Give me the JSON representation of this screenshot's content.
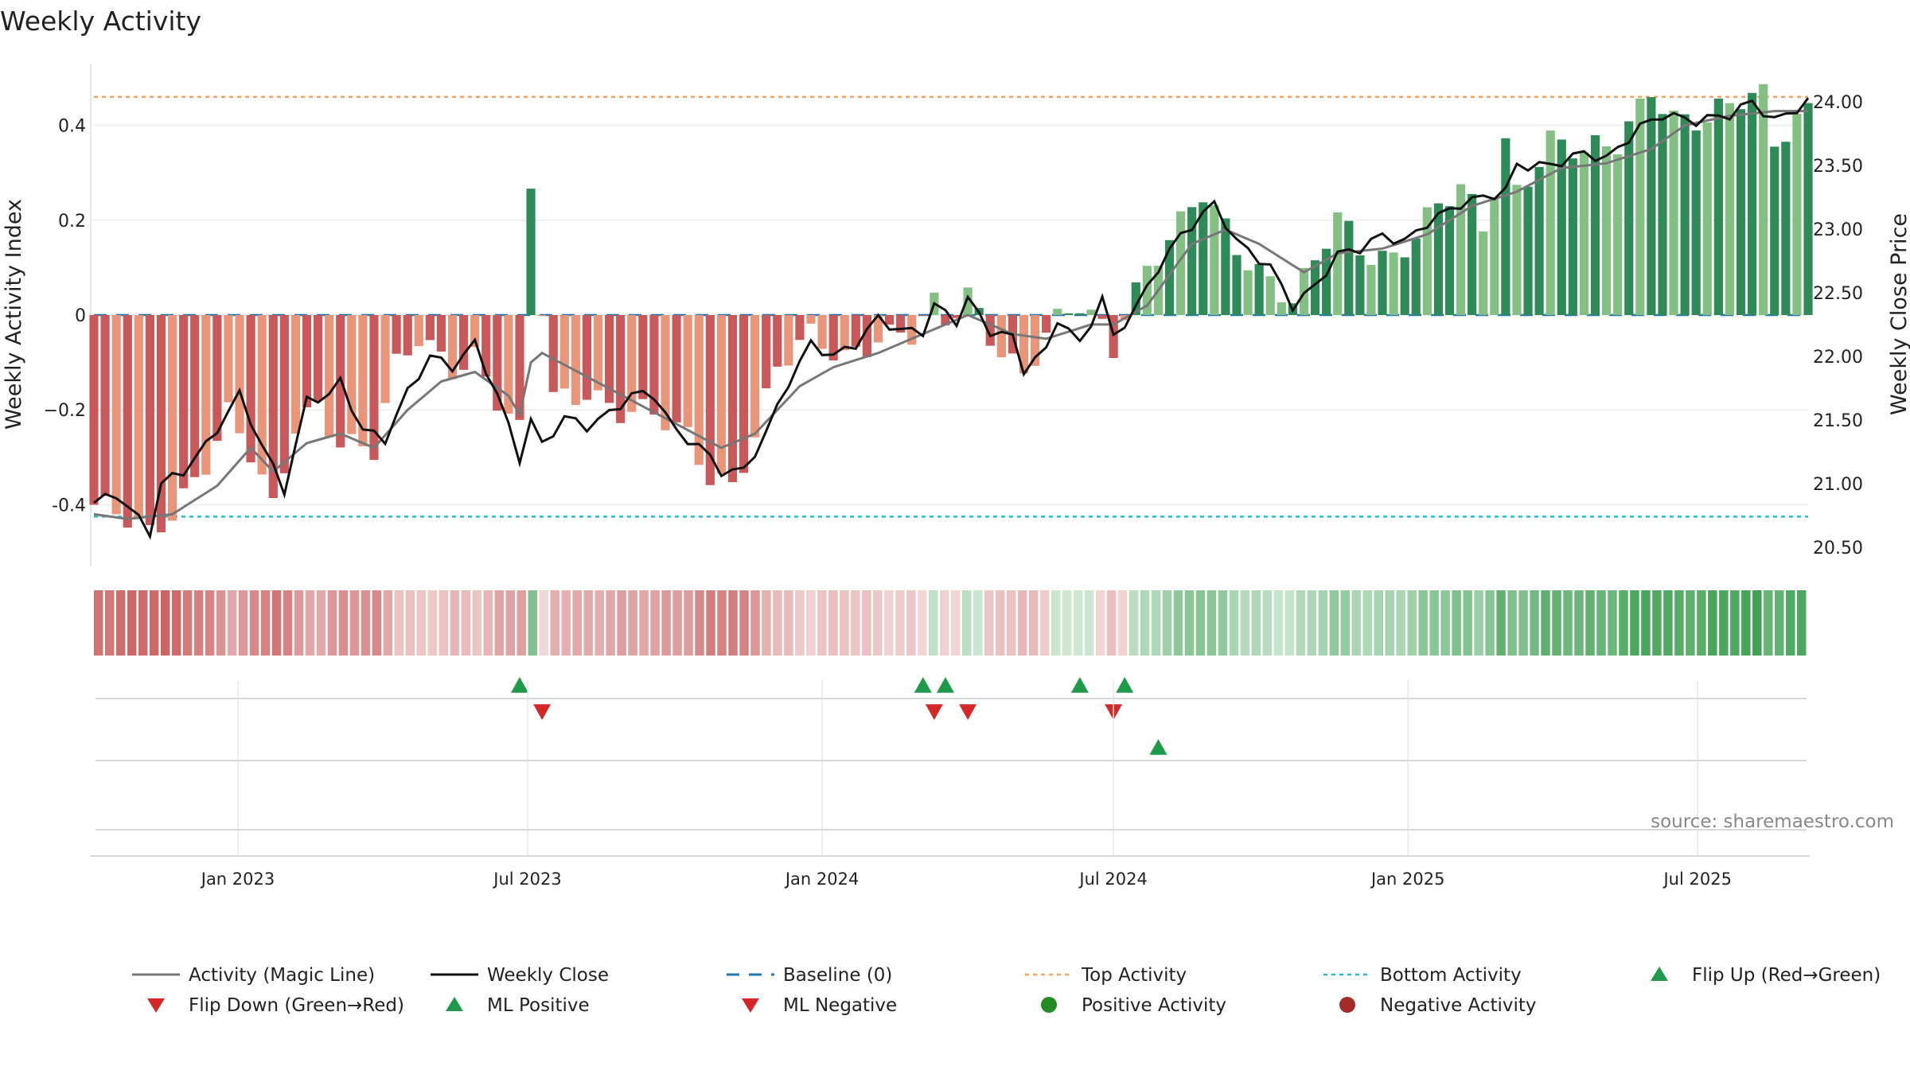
{
  "chart_data": {
    "type": "bar",
    "title": "Weekly Activity",
    "ylabel": "Weekly Activity Index",
    "y2label": "Weekly Close Price",
    "ylim": [
      -0.53,
      0.53
    ],
    "y2lim": [
      20.35,
      24.3
    ],
    "yticks": [
      {
        "v": 0.4,
        "t": "0.4"
      },
      {
        "v": 0.2,
        "t": "0.2"
      },
      {
        "v": 0,
        "t": "0"
      },
      {
        "v": -0.2,
        "t": "−0.2"
      },
      {
        "v": -0.4,
        "t": "-0.4"
      }
    ],
    "y2ticks": [
      "24.00",
      "23.50",
      "23.00",
      "22.50",
      "22.00",
      "21.50",
      "21.00",
      "20.50"
    ],
    "grid": true,
    "x_start": "2022-10-03",
    "x_end": "2025-09-08",
    "week_step_days": 7,
    "x_ticks": [
      {
        "date": "2023-01-01",
        "label": "Jan 2023"
      },
      {
        "date": "2023-07-01",
        "label": "Jul 2023"
      },
      {
        "date": "2024-01-01",
        "label": "Jan 2024"
      },
      {
        "date": "2024-07-01",
        "label": "Jul 2024"
      },
      {
        "date": "2025-01-01",
        "label": "Jan 2025"
      },
      {
        "date": "2025-07-01",
        "label": "Jul 2025"
      }
    ],
    "top_activity": 0.46,
    "bottom_activity": -0.425,
    "activity_knots": [
      {
        "date": "2022-10-03",
        "v": -0.4
      },
      {
        "date": "2022-10-24",
        "v": -0.44
      },
      {
        "date": "2022-11-07",
        "v": -0.47
      },
      {
        "date": "2022-11-21",
        "v": -0.41
      },
      {
        "date": "2022-12-12",
        "v": -0.3
      },
      {
        "date": "2022-12-26",
        "v": -0.21
      },
      {
        "date": "2023-01-09",
        "v": -0.3
      },
      {
        "date": "2023-01-23",
        "v": -0.42
      },
      {
        "date": "2023-02-06",
        "v": -0.23
      },
      {
        "date": "2023-02-20",
        "v": -0.18
      },
      {
        "date": "2023-03-06",
        "v": -0.26
      },
      {
        "date": "2023-03-27",
        "v": -0.29
      },
      {
        "date": "2023-04-10",
        "v": -0.12
      },
      {
        "date": "2023-04-24",
        "v": -0.05
      },
      {
        "date": "2023-05-15",
        "v": -0.1
      },
      {
        "date": "2023-05-29",
        "v": -0.08
      },
      {
        "date": "2023-06-12",
        "v": -0.18
      },
      {
        "date": "2023-06-26",
        "v": -0.26
      },
      {
        "date": "2023-07-03",
        "v": 0.26
      },
      {
        "date": "2023-07-10",
        "v": 0.01
      },
      {
        "date": "2023-07-17",
        "v": -0.18
      },
      {
        "date": "2023-08-07",
        "v": -0.15
      },
      {
        "date": "2023-08-28",
        "v": -0.2
      },
      {
        "date": "2023-09-18",
        "v": -0.22
      },
      {
        "date": "2023-10-09",
        "v": -0.26
      },
      {
        "date": "2023-10-23",
        "v": -0.33
      },
      {
        "date": "2023-11-06",
        "v": -0.35
      },
      {
        "date": "2023-11-20",
        "v": -0.25
      },
      {
        "date": "2023-12-04",
        "v": -0.12
      },
      {
        "date": "2023-12-25",
        "v": -0.05
      },
      {
        "date": "2024-01-15",
        "v": -0.08
      },
      {
        "date": "2024-02-05",
        "v": -0.04
      },
      {
        "date": "2024-02-26",
        "v": -0.05
      },
      {
        "date": "2024-03-11",
        "v": 0.01
      },
      {
        "date": "2024-03-18",
        "v": -0.02
      },
      {
        "date": "2024-04-01",
        "v": 0.05
      },
      {
        "date": "2024-04-15",
        "v": -0.03
      },
      {
        "date": "2024-05-06",
        "v": -0.13
      },
      {
        "date": "2024-05-20",
        "v": -0.05
      },
      {
        "date": "2024-06-10",
        "v": 0.02
      },
      {
        "date": "2024-06-24",
        "v": -0.02
      },
      {
        "date": "2024-07-01",
        "v": -0.06
      },
      {
        "date": "2024-07-08",
        "v": 0.02
      },
      {
        "date": "2024-07-22",
        "v": 0.1
      },
      {
        "date": "2024-08-12",
        "v": 0.18
      },
      {
        "date": "2024-08-26",
        "v": 0.25
      },
      {
        "date": "2024-09-16",
        "v": 0.15
      },
      {
        "date": "2024-10-07",
        "v": 0.08
      },
      {
        "date": "2024-10-21",
        "v": 0.03
      },
      {
        "date": "2024-11-04",
        "v": 0.1
      },
      {
        "date": "2024-11-18",
        "v": 0.2
      },
      {
        "date": "2024-12-02",
        "v": 0.14
      },
      {
        "date": "2024-12-23",
        "v": 0.13
      },
      {
        "date": "2025-01-13",
        "v": 0.2
      },
      {
        "date": "2025-02-03",
        "v": 0.26
      },
      {
        "date": "2025-02-17",
        "v": 0.18
      },
      {
        "date": "2025-03-03",
        "v": 0.37
      },
      {
        "date": "2025-03-10",
        "v": 0.27
      },
      {
        "date": "2025-03-31",
        "v": 0.37
      },
      {
        "date": "2025-04-21",
        "v": 0.33
      },
      {
        "date": "2025-05-12",
        "v": 0.36
      },
      {
        "date": "2025-06-02",
        "v": 0.49
      },
      {
        "date": "2025-06-16",
        "v": 0.42
      },
      {
        "date": "2025-07-07",
        "v": 0.4
      },
      {
        "date": "2025-07-28",
        "v": 0.45
      },
      {
        "date": "2025-08-11",
        "v": 0.47
      },
      {
        "date": "2025-08-18",
        "v": 0.38
      },
      {
        "date": "2025-09-08",
        "v": 0.44
      }
    ],
    "close_knots": [
      {
        "date": "2022-10-03",
        "v": 20.85
      },
      {
        "date": "2022-10-17",
        "v": 20.92
      },
      {
        "date": "2022-11-07",
        "v": 20.62
      },
      {
        "date": "2022-11-14",
        "v": 21.0
      },
      {
        "date": "2022-11-28",
        "v": 21.1
      },
      {
        "date": "2022-12-12",
        "v": 21.3
      },
      {
        "date": "2023-01-02",
        "v": 21.7
      },
      {
        "date": "2023-01-16",
        "v": 21.3
      },
      {
        "date": "2023-01-30",
        "v": 20.95
      },
      {
        "date": "2023-02-13",
        "v": 21.65
      },
      {
        "date": "2023-02-27",
        "v": 21.7
      },
      {
        "date": "2023-03-06",
        "v": 21.8
      },
      {
        "date": "2023-03-20",
        "v": 21.42
      },
      {
        "date": "2023-04-03",
        "v": 21.35
      },
      {
        "date": "2023-04-17",
        "v": 21.72
      },
      {
        "date": "2023-05-01",
        "v": 22.0
      },
      {
        "date": "2023-05-15",
        "v": 21.92
      },
      {
        "date": "2023-05-29",
        "v": 22.1
      },
      {
        "date": "2023-06-12",
        "v": 21.7
      },
      {
        "date": "2023-06-26",
        "v": 21.2
      },
      {
        "date": "2023-07-03",
        "v": 21.5
      },
      {
        "date": "2023-07-10",
        "v": 21.3
      },
      {
        "date": "2023-07-24",
        "v": 21.52
      },
      {
        "date": "2023-08-07",
        "v": 21.45
      },
      {
        "date": "2023-08-21",
        "v": 21.55
      },
      {
        "date": "2023-09-04",
        "v": 21.7
      },
      {
        "date": "2023-09-18",
        "v": 21.7
      },
      {
        "date": "2023-10-02",
        "v": 21.4
      },
      {
        "date": "2023-10-16",
        "v": 21.3
      },
      {
        "date": "2023-10-30",
        "v": 21.1
      },
      {
        "date": "2023-11-13",
        "v": 21.1
      },
      {
        "date": "2023-11-27",
        "v": 21.4
      },
      {
        "date": "2023-12-11",
        "v": 21.8
      },
      {
        "date": "2023-12-25",
        "v": 22.1
      },
      {
        "date": "2024-01-08",
        "v": 22.0
      },
      {
        "date": "2024-01-22",
        "v": 22.1
      },
      {
        "date": "2024-02-05",
        "v": 22.3
      },
      {
        "date": "2024-02-19",
        "v": 22.2
      },
      {
        "date": "2024-03-04",
        "v": 22.2
      },
      {
        "date": "2024-03-11",
        "v": 22.4
      },
      {
        "date": "2024-03-25",
        "v": 22.28
      },
      {
        "date": "2024-04-01",
        "v": 22.45
      },
      {
        "date": "2024-04-15",
        "v": 22.2
      },
      {
        "date": "2024-04-29",
        "v": 22.15
      },
      {
        "date": "2024-05-06",
        "v": 21.9
      },
      {
        "date": "2024-05-20",
        "v": 22.05
      },
      {
        "date": "2024-05-27",
        "v": 22.3
      },
      {
        "date": "2024-06-10",
        "v": 22.1
      },
      {
        "date": "2024-06-24",
        "v": 22.45
      },
      {
        "date": "2024-07-01",
        "v": 22.15
      },
      {
        "date": "2024-07-15",
        "v": 22.38
      },
      {
        "date": "2024-07-29",
        "v": 22.7
      },
      {
        "date": "2024-08-12",
        "v": 22.95
      },
      {
        "date": "2024-09-02",
        "v": 23.2
      },
      {
        "date": "2024-09-16",
        "v": 22.9
      },
      {
        "date": "2024-10-07",
        "v": 22.7
      },
      {
        "date": "2024-10-21",
        "v": 22.4
      },
      {
        "date": "2024-11-04",
        "v": 22.55
      },
      {
        "date": "2024-11-18",
        "v": 22.8
      },
      {
        "date": "2024-12-02",
        "v": 22.85
      },
      {
        "date": "2024-12-16",
        "v": 22.95
      },
      {
        "date": "2024-12-30",
        "v": 22.9
      },
      {
        "date": "2025-01-13",
        "v": 23.05
      },
      {
        "date": "2025-02-03",
        "v": 23.2
      },
      {
        "date": "2025-02-17",
        "v": 23.25
      },
      {
        "date": "2025-03-03",
        "v": 23.3
      },
      {
        "date": "2025-03-10",
        "v": 23.5
      },
      {
        "date": "2025-03-31",
        "v": 23.5
      },
      {
        "date": "2025-04-21",
        "v": 23.6
      },
      {
        "date": "2025-05-05",
        "v": 23.55
      },
      {
        "date": "2025-05-26",
        "v": 23.8
      },
      {
        "date": "2025-06-09",
        "v": 23.9
      },
      {
        "date": "2025-06-30",
        "v": 23.85
      },
      {
        "date": "2025-07-21",
        "v": 23.9
      },
      {
        "date": "2025-08-04",
        "v": 24.0
      },
      {
        "date": "2025-08-18",
        "v": 23.85
      },
      {
        "date": "2025-09-08",
        "v": 24.0
      }
    ],
    "magic_knots": [
      {
        "date": "2022-10-03",
        "v": -0.42
      },
      {
        "date": "2022-10-24",
        "v": -0.43
      },
      {
        "date": "2022-11-21",
        "v": -0.42
      },
      {
        "date": "2022-12-19",
        "v": -0.36
      },
      {
        "date": "2023-01-09",
        "v": -0.28
      },
      {
        "date": "2023-01-23",
        "v": -0.33
      },
      {
        "date": "2023-02-13",
        "v": -0.27
      },
      {
        "date": "2023-03-06",
        "v": -0.25
      },
      {
        "date": "2023-03-27",
        "v": -0.28
      },
      {
        "date": "2023-04-17",
        "v": -0.2
      },
      {
        "date": "2023-05-08",
        "v": -0.14
      },
      {
        "date": "2023-05-29",
        "v": -0.12
      },
      {
        "date": "2023-06-19",
        "v": -0.17
      },
      {
        "date": "2023-06-26",
        "v": -0.21
      },
      {
        "date": "2023-07-03",
        "v": -0.1
      },
      {
        "date": "2023-07-10",
        "v": -0.08
      },
      {
        "date": "2023-08-07",
        "v": -0.13
      },
      {
        "date": "2023-09-04",
        "v": -0.18
      },
      {
        "date": "2023-10-02",
        "v": -0.23
      },
      {
        "date": "2023-10-30",
        "v": -0.28
      },
      {
        "date": "2023-11-20",
        "v": -0.25
      },
      {
        "date": "2023-12-18",
        "v": -0.15
      },
      {
        "date": "2024-01-08",
        "v": -0.11
      },
      {
        "date": "2024-02-05",
        "v": -0.08
      },
      {
        "date": "2024-03-04",
        "v": -0.04
      },
      {
        "date": "2024-04-01",
        "v": 0.0
      },
      {
        "date": "2024-04-29",
        "v": -0.04
      },
      {
        "date": "2024-05-20",
        "v": -0.05
      },
      {
        "date": "2024-06-17",
        "v": -0.02
      },
      {
        "date": "2024-07-01",
        "v": -0.02
      },
      {
        "date": "2024-07-22",
        "v": 0.02
      },
      {
        "date": "2024-08-19",
        "v": 0.15
      },
      {
        "date": "2024-09-09",
        "v": 0.18
      },
      {
        "date": "2024-09-30",
        "v": 0.15
      },
      {
        "date": "2024-10-28",
        "v": 0.09
      },
      {
        "date": "2024-11-18",
        "v": 0.13
      },
      {
        "date": "2024-12-16",
        "v": 0.14
      },
      {
        "date": "2025-01-13",
        "v": 0.17
      },
      {
        "date": "2025-02-10",
        "v": 0.23
      },
      {
        "date": "2025-03-10",
        "v": 0.26
      },
      {
        "date": "2025-04-07",
        "v": 0.31
      },
      {
        "date": "2025-05-05",
        "v": 0.32
      },
      {
        "date": "2025-06-02",
        "v": 0.35
      },
      {
        "date": "2025-06-23",
        "v": 0.4
      },
      {
        "date": "2025-07-21",
        "v": 0.42
      },
      {
        "date": "2025-08-18",
        "v": 0.43
      },
      {
        "date": "2025-09-08",
        "v": 0.43
      }
    ],
    "flip_up_dates": [
      "2023-06-26",
      "2024-03-04",
      "2024-03-18",
      "2024-06-10",
      "2024-07-08"
    ],
    "flip_down_dates": [
      "2023-07-10",
      "2024-03-11",
      "2024-04-01",
      "2024-07-01"
    ],
    "ml_positive_dates": [
      "2024-07-29"
    ],
    "ml_negative_dates": [],
    "colors": {
      "strong_red": "#c8585a",
      "light_red": "#e8957a",
      "strong_green": "#2e8b57",
      "light_green": "#84c084",
      "close_line": "#111111",
      "magic_line": "#777777",
      "baseline": "#1f77b4",
      "top_line": "#f4a460",
      "bottom_line": "#22c0c8",
      "marker_green": "#1e9a4a",
      "marker_red": "#d62728",
      "dot_green": "#228b22",
      "dot_red": "#a52a2a"
    },
    "source": "source: sharemaestro.com",
    "legend": [
      {
        "key": "magic",
        "label": "Activity (Magic Line)"
      },
      {
        "key": "close",
        "label": "Weekly Close"
      },
      {
        "key": "baseline",
        "label": "Baseline (0)"
      },
      {
        "key": "top",
        "label": "Top Activity"
      },
      {
        "key": "bottom",
        "label": "Bottom Activity"
      },
      {
        "key": "flip_up",
        "label": "Flip Up (Red→Green)"
      },
      {
        "key": "flip_down",
        "label": "Flip Down (Green→Red)"
      },
      {
        "key": "ml_pos",
        "label": "ML Positive"
      },
      {
        "key": "ml_neg",
        "label": "ML Negative"
      },
      {
        "key": "pos_act",
        "label": "Positive Activity"
      },
      {
        "key": "neg_act",
        "label": "Negative Activity"
      }
    ]
  }
}
